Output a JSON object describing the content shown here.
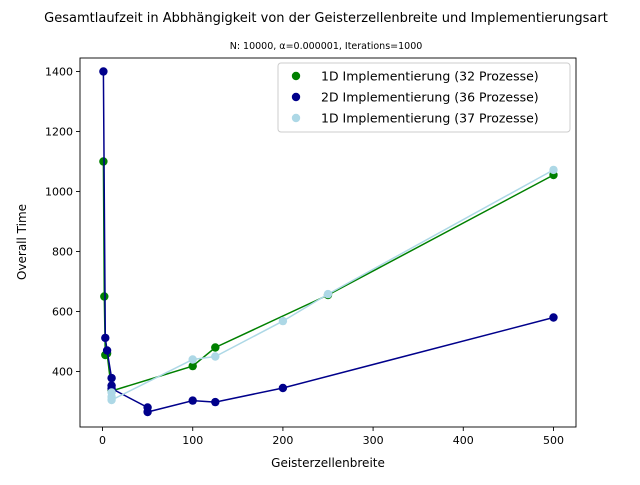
{
  "chart_data": {
    "type": "line",
    "title": "Gesamtlaufzeit in Abbhängigkeit von der Geisterzellenbreite und Implementierungsart",
    "subtitle": "N: 10000, α=0.000001, Iterations=1000",
    "xlabel": "Geisterzellenbreite",
    "ylabel": "Overall Time",
    "xlim": [
      -25,
      525
    ],
    "ylim": [
      215,
      1445
    ],
    "xticks": [
      0,
      100,
      200,
      300,
      400,
      500
    ],
    "yticks": [
      400,
      600,
      800,
      1000,
      1200,
      1400
    ],
    "grid": false,
    "legend_position": "top-right",
    "series": [
      {
        "name": "1D Implementierung (32 Prozesse)",
        "color": "#008000",
        "x": [
          1,
          2,
          3,
          5,
          10,
          100,
          125,
          250,
          500
        ],
        "y": [
          1100,
          650,
          455,
          460,
          335,
          418,
          480,
          655,
          1055
        ]
      },
      {
        "name": "2D Implementierung (36 Prozesse)",
        "color": "#00008b",
        "x": [
          1,
          3,
          5,
          10,
          10,
          10,
          50,
          50,
          100,
          125,
          200,
          500
        ],
        "y": [
          1400,
          512,
          470,
          378,
          353,
          343,
          280,
          265,
          303,
          298,
          345,
          580
        ],
        "marker_only_x": [],
        "note_order": "line drawn in listed order"
      },
      {
        "name": "1D Implementierung (37 Prozesse)",
        "color": "#add8e6",
        "x": [
          10,
          10,
          10,
          100,
          125,
          200,
          250,
          500
        ],
        "y": [
          330,
          315,
          305,
          440,
          450,
          568,
          658,
          1072
        ]
      }
    ]
  }
}
